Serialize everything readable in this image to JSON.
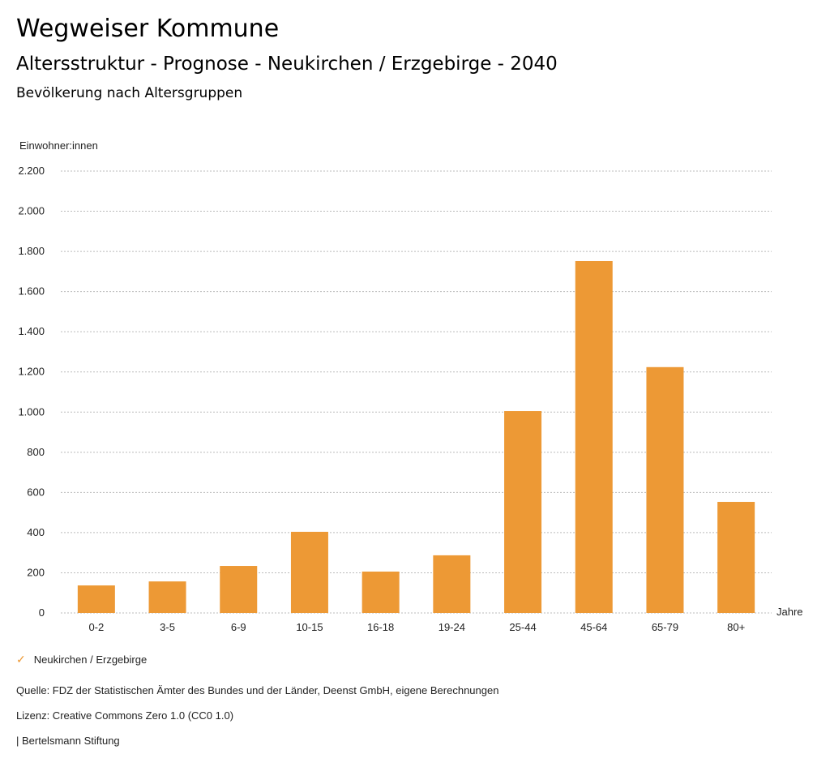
{
  "header": {
    "title": "Wegweiser Kommune",
    "subtitle": "Altersstruktur - Prognose - Neukirchen / Erzgebirge - 2040",
    "section": "Bevölkerung nach Altersgruppen"
  },
  "chart_data": {
    "type": "bar",
    "title": "Bevölkerung nach Altersgruppen",
    "ylabel": "Einwohner:innen",
    "xlabel": "Jahre",
    "categories": [
      "0-2",
      "3-5",
      "6-9",
      "10-15",
      "16-18",
      "19-24",
      "25-44",
      "45-64",
      "65-79",
      "80+"
    ],
    "series": [
      {
        "name": "Neukirchen / Erzgebirge",
        "values": [
          137,
          157,
          234,
          404,
          206,
          287,
          1005,
          1752,
          1224,
          553
        ]
      }
    ],
    "ylim": [
      0,
      2200
    ],
    "yticks": [
      0,
      200,
      400,
      600,
      800,
      1000,
      1200,
      1400,
      1600,
      1800,
      2000,
      2200
    ],
    "ytick_labels": [
      "0",
      "200",
      "400",
      "600",
      "800",
      "1.000",
      "1.200",
      "1.400",
      "1.600",
      "1.800",
      "2.000",
      "2.200"
    ],
    "grid": true,
    "legend": "bottom-left",
    "color": "#ED9935"
  },
  "footer": {
    "source": "Quelle: FDZ der Statistischen Ämter des Bundes und der Länder, Deenst GmbH, eigene Berechnungen",
    "license": "Lizenz: Creative Commons Zero 1.0 (CC0 1.0)",
    "brand": "| Bertelsmann Stiftung"
  }
}
